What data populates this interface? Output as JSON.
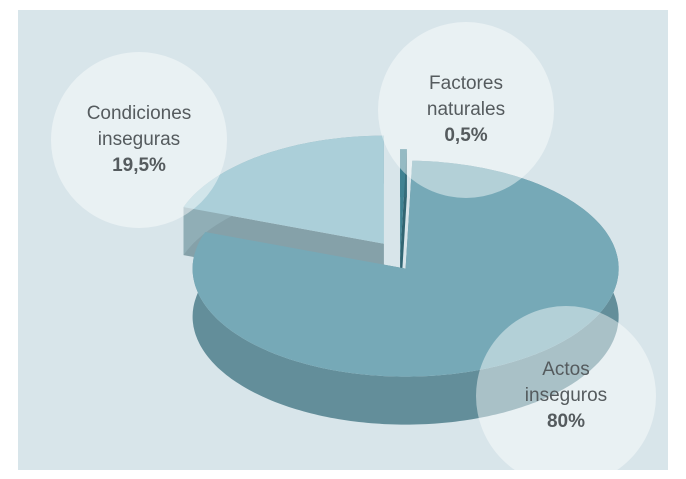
{
  "chart_data": {
    "type": "pie",
    "categories": [
      "Factores naturales",
      "Actos inseguros",
      "Condiciones inseguras"
    ],
    "values": [
      0.5,
      80,
      19.5
    ],
    "value_labels": [
      "0,5%",
      "80%",
      "19,5%"
    ],
    "colors": [
      "#3f8292",
      "#76a9b7",
      "#abcfd9"
    ]
  }
}
